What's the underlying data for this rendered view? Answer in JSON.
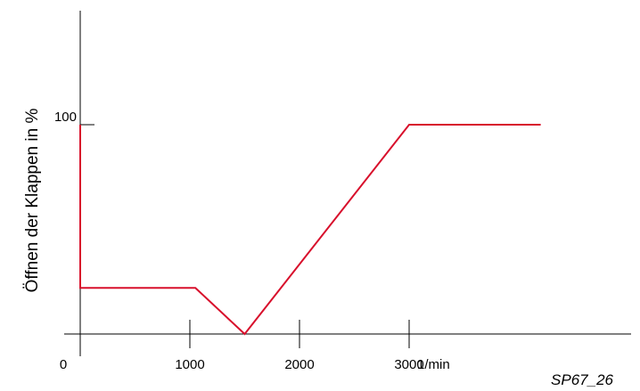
{
  "chart_data": {
    "type": "line",
    "title": "",
    "xlabel": "1/min",
    "ylabel": "Öffnen der Klappen in %",
    "x_ticks": [
      1000,
      2000,
      3000
    ],
    "x_tick_labels": [
      "1000",
      "2000",
      "3000"
    ],
    "x_origin_label": "0",
    "y_ticks": [
      100
    ],
    "y_tick_labels": [
      "100"
    ],
    "xlim": [
      0,
      4000
    ],
    "ylim": [
      0,
      150
    ],
    "grid": false,
    "series": [
      {
        "color": "#d8102c",
        "x": [
          0,
          0,
          380,
          1050,
          1500,
          3000,
          4200
        ],
        "y": [
          100,
          22,
          22,
          22,
          0,
          100,
          100
        ]
      }
    ]
  },
  "figure_ref": "SP67_26"
}
